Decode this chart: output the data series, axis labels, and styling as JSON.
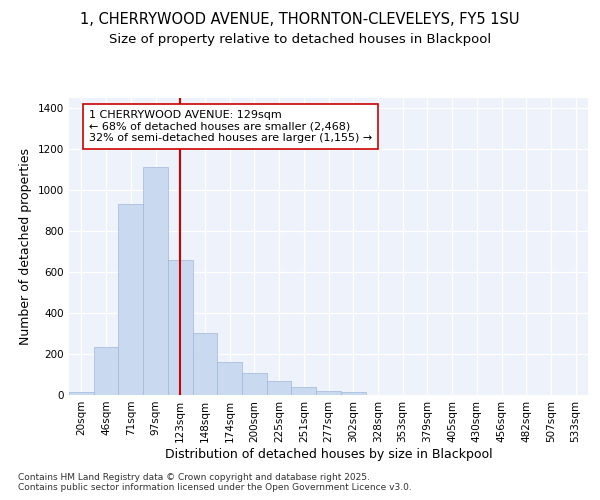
{
  "title_line1": "1, CHERRYWOOD AVENUE, THORNTON-CLEVELEYS, FY5 1SU",
  "title_line2": "Size of property relative to detached houses in Blackpool",
  "xlabel": "Distribution of detached houses by size in Blackpool",
  "ylabel": "Number of detached properties",
  "categories": [
    "20sqm",
    "46sqm",
    "71sqm",
    "97sqm",
    "123sqm",
    "148sqm",
    "174sqm",
    "200sqm",
    "225sqm",
    "251sqm",
    "277sqm",
    "302sqm",
    "328sqm",
    "353sqm",
    "379sqm",
    "405sqm",
    "430sqm",
    "456sqm",
    "482sqm",
    "507sqm",
    "533sqm"
  ],
  "values": [
    15,
    235,
    930,
    1110,
    660,
    300,
    160,
    105,
    70,
    40,
    20,
    15,
    0,
    0,
    0,
    0,
    0,
    0,
    0,
    0,
    0
  ],
  "bar_color": "#c9d9f0",
  "bar_edge_color": "#a0b8d8",
  "vline_color": "#cc0000",
  "annotation_text": "1 CHERRYWOOD AVENUE: 129sqm\n← 68% of detached houses are smaller (2,468)\n32% of semi-detached houses are larger (1,155) →",
  "annotation_box_color": "#ffffff",
  "annotation_box_edge": "#cc0000",
  "ylim": [
    0,
    1450
  ],
  "yticks": [
    0,
    200,
    400,
    600,
    800,
    1000,
    1200,
    1400
  ],
  "background_color": "#eef2fa",
  "footer_text": "Contains HM Land Registry data © Crown copyright and database right 2025.\nContains public sector information licensed under the Open Government Licence v3.0.",
  "title_fontsize": 10.5,
  "subtitle_fontsize": 9.5,
  "axis_label_fontsize": 9,
  "tick_fontsize": 7.5,
  "annotation_fontsize": 8,
  "footer_fontsize": 6.5
}
